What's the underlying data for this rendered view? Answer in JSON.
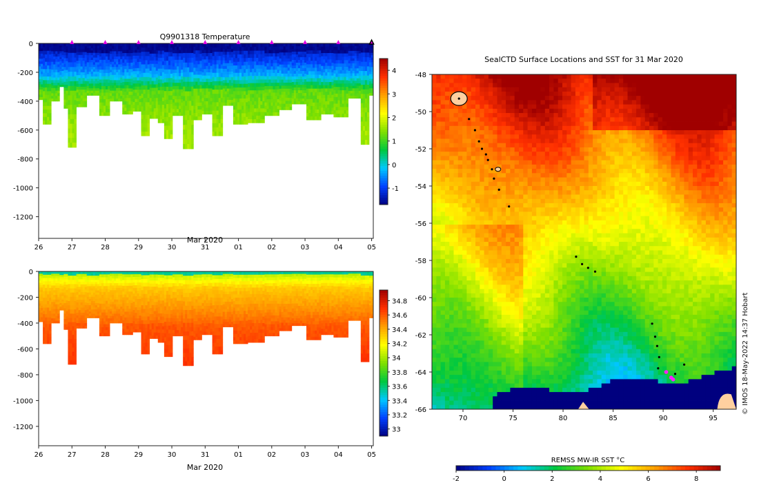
{
  "chart_data": [
    {
      "type": "heatmap",
      "title": "Q9901318  Temperature",
      "xlabel": "Mar 2020",
      "ylabel": "",
      "x_tick_labels": [
        "26",
        "27",
        "28",
        "29",
        "30",
        "31",
        "01",
        "02",
        "03",
        "04",
        "05"
      ],
      "y_ticks": [
        0,
        -200,
        -400,
        -600,
        -800,
        -1000,
        -1200
      ],
      "ylim": [
        -1350,
        0
      ],
      "xlim": [
        26,
        36.05
      ],
      "colorbar_ticks": [
        4,
        3,
        2,
        1,
        0,
        -1
      ],
      "colorbar_range": [
        -1.7,
        4.5
      ],
      "colormap": [
        "#00007f",
        "#0040ff",
        "#00c8ff",
        "#00c840",
        "#80e000",
        "#ffff00",
        "#ffa000",
        "#ff3000",
        "#a00000"
      ],
      "profile_max_depths": [
        {
          "day": 26.1,
          "depth": 390
        },
        {
          "day": 26.2,
          "depth": 560
        },
        {
          "day": 26.5,
          "depth": 400
        },
        {
          "day": 26.7,
          "depth": 300
        },
        {
          "day": 26.8,
          "depth": 450
        },
        {
          "day": 27.0,
          "depth": 720
        },
        {
          "day": 27.3,
          "depth": 440
        },
        {
          "day": 27.6,
          "depth": 360
        },
        {
          "day": 28.0,
          "depth": 500
        },
        {
          "day": 28.3,
          "depth": 400
        },
        {
          "day": 28.7,
          "depth": 490
        },
        {
          "day": 29.0,
          "depth": 470
        },
        {
          "day": 29.2,
          "depth": 640
        },
        {
          "day": 29.4,
          "depth": 520
        },
        {
          "day": 29.7,
          "depth": 550
        },
        {
          "day": 29.9,
          "depth": 660
        },
        {
          "day": 30.2,
          "depth": 500
        },
        {
          "day": 30.5,
          "depth": 730
        },
        {
          "day": 30.8,
          "depth": 530
        },
        {
          "day": 31.0,
          "depth": 490
        },
        {
          "day": 31.4,
          "depth": 640
        },
        {
          "day": 31.6,
          "depth": 430
        },
        {
          "day": 32.1,
          "depth": 560
        },
        {
          "day": 32.5,
          "depth": 550
        },
        {
          "day": 33.1,
          "depth": 500
        },
        {
          "day": 33.4,
          "depth": 460
        },
        {
          "day": 33.8,
          "depth": 420
        },
        {
          "day": 34.3,
          "depth": 530
        },
        {
          "day": 34.6,
          "depth": 490
        },
        {
          "day": 35.1,
          "depth": 510
        },
        {
          "day": 35.5,
          "depth": 380
        },
        {
          "day": 35.8,
          "depth": 700
        },
        {
          "day": 36.0,
          "depth": 360
        }
      ],
      "marker_days": [
        27,
        28,
        29,
        30,
        31,
        32,
        33,
        34,
        35,
        36
      ]
    },
    {
      "type": "heatmap",
      "title": "",
      "xlabel": "Mar 2020",
      "ylabel": "",
      "x_tick_labels": [
        "26",
        "27",
        "28",
        "29",
        "30",
        "31",
        "01",
        "02",
        "03",
        "04",
        "05"
      ],
      "y_ticks": [
        0,
        -200,
        -400,
        -600,
        -800,
        -1000,
        -1200
      ],
      "ylim": [
        -1350,
        0
      ],
      "xlim": [
        26,
        36.05
      ],
      "colorbar_ticks": [
        34.8,
        34.6,
        34.4,
        34.2,
        34,
        33.8,
        33.6,
        33.4,
        33.2,
        33
      ],
      "colorbar_range": [
        32.9,
        34.95
      ],
      "colormap": [
        "#00007f",
        "#0040ff",
        "#00c8ff",
        "#00c840",
        "#80e000",
        "#ffff00",
        "#ffa000",
        "#ff3000",
        "#a00000"
      ]
    },
    {
      "type": "heatmap",
      "title": "SealCTD Surface Locations and SST for 31 Mar 2020",
      "xlabel": "",
      "ylabel": "",
      "x_ticks": [
        70,
        75,
        80,
        85,
        90,
        95
      ],
      "y_ticks": [
        -48,
        -50,
        -52,
        -54,
        -56,
        -58,
        -60,
        -62,
        -64,
        -66
      ],
      "xlim": [
        66.9,
        97.3
      ],
      "ylim": [
        -66,
        -48
      ],
      "colorbar_label": "REMSS MW-IR SST °C",
      "colorbar_ticks": [
        -2,
        0,
        2,
        4,
        6,
        8
      ],
      "colorbar_range": [
        -2,
        9
      ],
      "track_points": [
        [
          69.6,
          -49.3
        ],
        [
          70.6,
          -50.4
        ],
        [
          71.2,
          -51.0
        ],
        [
          71.6,
          -51.6
        ],
        [
          71.9,
          -52.0
        ],
        [
          72.3,
          -52.3
        ],
        [
          72.5,
          -52.6
        ],
        [
          72.9,
          -53.1
        ],
        [
          73.1,
          -53.6
        ],
        [
          73.6,
          -54.2
        ],
        [
          74.6,
          -55.1
        ],
        [
          81.3,
          -57.8
        ],
        [
          81.9,
          -58.2
        ],
        [
          82.5,
          -58.4
        ],
        [
          83.2,
          -58.6
        ],
        [
          88.9,
          -61.4
        ],
        [
          89.2,
          -62.1
        ],
        [
          89.4,
          -62.6
        ],
        [
          89.6,
          -63.2
        ],
        [
          89.5,
          -63.8
        ],
        [
          90.3,
          -64.0
        ],
        [
          91.2,
          -64.1
        ],
        [
          92.1,
          -63.6
        ]
      ],
      "latest_points": [
        [
          90.3,
          -64.0
        ],
        [
          90.8,
          -64.3
        ],
        [
          91.0,
          -64.4
        ]
      ]
    }
  ],
  "credit": "© IMOS 18-May-2022 14:37 Hobart"
}
